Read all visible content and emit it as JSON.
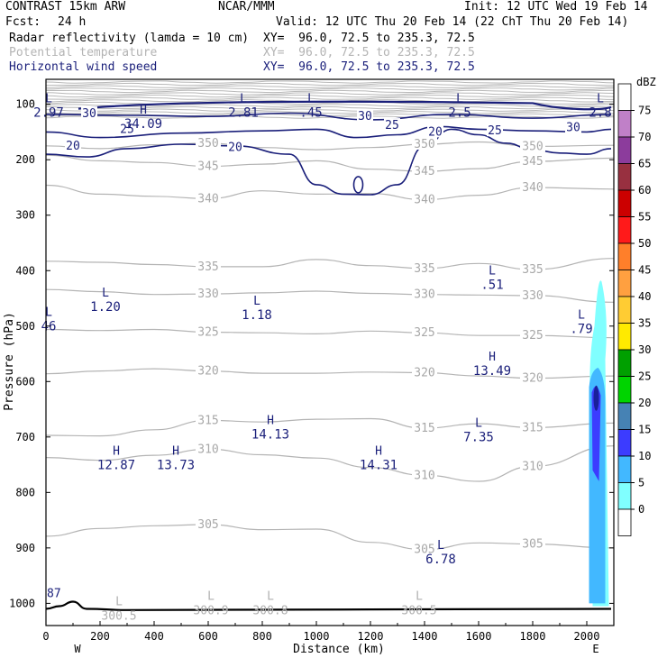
{
  "header": {
    "model": "CONTRAST 15km ARW",
    "org": "NCAR/MMM",
    "init": "Init: 12 UTC Wed 19 Feb 14",
    "fcst_label": "Fcst:",
    "fcst_value": "24 h",
    "valid": "Valid: 12 UTC Thu 20 Feb 14 (22 ChT Thu 20 Feb 14)"
  },
  "layers": [
    {
      "name": "Radar reflectivity (lamda = 10 cm)",
      "xy": "XY=  96.0, 72.5 to 235.3, 72.5",
      "color": "#000000"
    },
    {
      "name": "Potential temperature",
      "xy": "XY=  96.0, 72.5 to 235.3, 72.5",
      "color": "#b4b4b4"
    },
    {
      "name": "Horizontal wind speed",
      "xy": "XY=  96.0, 72.5 to 235.3, 72.5",
      "color": "#1a1f7a"
    }
  ],
  "chart_data": {
    "type": "cross-section",
    "xlabel": "Distance (km)",
    "ylabel": "Pressure (hPa)",
    "xlim": [
      0,
      2100
    ],
    "ylim": [
      1040,
      55
    ],
    "x_ticks": [
      0,
      200,
      400,
      600,
      800,
      1000,
      1200,
      1400,
      1600,
      1800,
      2000
    ],
    "y_ticks": [
      100,
      200,
      300,
      400,
      500,
      600,
      700,
      800,
      900,
      1000
    ],
    "x_end_labels": {
      "left": "W",
      "right": "E"
    },
    "colorbar": {
      "unit": "dBZ",
      "levels": [
        {
          "value": "75",
          "color": "#ffffff"
        },
        {
          "value": "70",
          "color": "#c080c8"
        },
        {
          "value": "65",
          "color": "#8c3c9c"
        },
        {
          "value": "60",
          "color": "#983040"
        },
        {
          "value": "55",
          "color": "#cc0000"
        },
        {
          "value": "50",
          "color": "#ff1a1a"
        },
        {
          "value": "45",
          "color": "#ff7f2a"
        },
        {
          "value": "40",
          "color": "#ffa040"
        },
        {
          "value": "35",
          "color": "#ffcc33"
        },
        {
          "value": "30",
          "color": "#ffea00"
        },
        {
          "value": "25",
          "color": "#00a000"
        },
        {
          "value": "20",
          "color": "#00d400"
        },
        {
          "value": "15",
          "color": "#4682b4"
        },
        {
          "value": "10",
          "color": "#3c3cff"
        },
        {
          "value": "5",
          "color": "#42b8ff"
        },
        {
          "value": "0",
          "color": "#80ffff"
        },
        {
          "value": "",
          "color": "#ffffff"
        }
      ]
    },
    "theta_contours": [
      {
        "label": "350",
        "p": [
          175,
          180,
          173,
          170,
          178,
          182,
          178,
          172,
          168,
          176,
          174
        ]
      },
      {
        "label": "345",
        "p": [
          192,
          202,
          205,
          212,
          208,
          202,
          217,
          221,
          216,
          203,
          197
        ]
      },
      {
        "label": "340",
        "p": [
          246,
          262,
          266,
          270,
          256,
          262,
          261,
          272,
          264,
          250,
          253
        ]
      },
      {
        "label": "335",
        "p": [
          383,
          385,
          389,
          393,
          393,
          380,
          391,
          396,
          387,
          398,
          378
        ]
      },
      {
        "label": "330",
        "p": [
          434,
          438,
          443,
          442,
          440,
          437,
          441,
          443,
          444,
          445,
          457
        ]
      },
      {
        "label": "325",
        "p": [
          506,
          508,
          506,
          511,
          512,
          514,
          509,
          512,
          517,
          517,
          521
        ]
      },
      {
        "label": "320",
        "p": [
          586,
          581,
          577,
          581,
          585,
          585,
          583,
          584,
          590,
          594,
          590
        ]
      },
      {
        "label": "315",
        "p": [
          697,
          698,
          687,
          670,
          673,
          668,
          667,
          684,
          676,
          683,
          675
        ]
      },
      {
        "label": "310",
        "p": [
          737,
          742,
          733,
          722,
          732,
          738,
          755,
          769,
          780,
          753,
          716
        ]
      },
      {
        "label": "305",
        "p": [
          879,
          865,
          860,
          858,
          867,
          866,
          890,
          903,
          891,
          893,
          900
        ]
      }
    ],
    "wind_contours": [
      {
        "label": "20",
        "x": [
          0,
          150,
          300,
          500,
          700,
          900,
          1000,
          1100,
          1200,
          1300,
          1400,
          1500,
          1600,
          1700,
          1800,
          1900,
          2000,
          2090
        ],
        "p": [
          190,
          195,
          180,
          172,
          175,
          190,
          245,
          262,
          263,
          245,
          175,
          145,
          155,
          170,
          182,
          188,
          190,
          180
        ]
      },
      {
        "label": "25",
        "x": [
          0,
          200,
          500,
          800,
          1000,
          1150,
          1300,
          1450,
          1600,
          1800,
          2000,
          2090
        ],
        "p": [
          150,
          160,
          152,
          148,
          145,
          160,
          155,
          140,
          145,
          148,
          150,
          145
        ]
      },
      {
        "label": "30",
        "x": [
          0,
          300,
          600,
          900,
          1200,
          1500,
          1800,
          2090
        ],
        "p": [
          118,
          120,
          122,
          116,
          128,
          118,
          125,
          118
        ]
      }
    ],
    "wind_contour_labels": [
      "20",
      "20",
      "20",
      "25",
      "25",
      "25",
      "30",
      "30",
      "30"
    ],
    "extrema": [
      {
        "kind": "L",
        "value": "2.97",
        "x": 10,
        "p": 100
      },
      {
        "kind": "H",
        "value": "34.09",
        "x": 360,
        "p": 120
      },
      {
        "kind": "L",
        "value": "2.81",
        "x": 730,
        "p": 100
      },
      {
        "kind": "L",
        "value": ".45",
        "x": 980,
        "p": 100
      },
      {
        "kind": "L",
        "value": "2.5",
        "x": 1530,
        "p": 100
      },
      {
        "kind": "L",
        "value": "2.8",
        "x": 2050,
        "p": 100
      },
      {
        "kind": "L",
        "value": "1.20",
        "x": 220,
        "p": 450
      },
      {
        "kind": "L",
        "value": "1.18",
        "x": 780,
        "p": 465
      },
      {
        "kind": "L",
        "value": "46",
        "x": 10,
        "p": 485
      },
      {
        "kind": "L",
        "value": ".51",
        "x": 1650,
        "p": 410
      },
      {
        "kind": "L",
        "value": ".79",
        "x": 1980,
        "p": 490
      },
      {
        "kind": "H",
        "value": "13.49",
        "x": 1650,
        "p": 565
      },
      {
        "kind": "H",
        "value": "14.13",
        "x": 830,
        "p": 680
      },
      {
        "kind": "L",
        "value": "7.35",
        "x": 1600,
        "p": 685
      },
      {
        "kind": "H",
        "value": "12.87",
        "x": 260,
        "p": 735
      },
      {
        "kind": "H",
        "value": "13.73",
        "x": 480,
        "p": 735
      },
      {
        "kind": "H",
        "value": "14.31",
        "x": 1230,
        "p": 735
      },
      {
        "kind": "L",
        "value": "6.78",
        "x": 1460,
        "p": 905
      }
    ],
    "theta_extrema": [
      {
        "kind": "L",
        "value": "300.5",
        "x": 270,
        "p": 1010
      },
      {
        "kind": "L",
        "value": "300.9",
        "x": 610,
        "p": 1000
      },
      {
        "kind": "L",
        "value": "300.8",
        "x": 830,
        "p": 1000
      },
      {
        "kind": "L",
        "value": "300.5",
        "x": 1380,
        "p": 1000
      }
    ],
    "edge_labels": [
      {
        "text": "87",
        "x": 0,
        "p": 995
      }
    ],
    "surface": {
      "x": [
        0,
        50,
        100,
        150,
        300,
        2090
      ],
      "p": [
        1010,
        1005,
        997,
        1010,
        1012,
        1010
      ]
    },
    "reflectivity_cell": {
      "x_range": [
        1990,
        2080
      ],
      "p_range": [
        405,
        1005
      ],
      "peak_p": 630
    }
  }
}
